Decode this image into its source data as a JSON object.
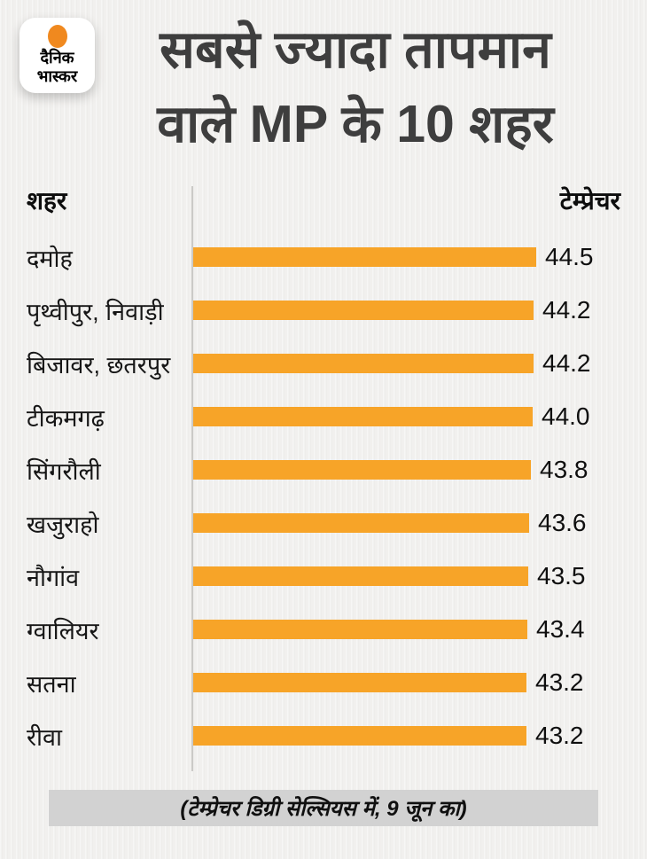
{
  "logo": {
    "name": "Dainik Bhaskar",
    "line1": "दैनिक",
    "line2": "भास्कर"
  },
  "title": {
    "line1": "सबसे ज्यादा तापमान",
    "line2": "वाले MP के 10 शहर"
  },
  "chart_data": {
    "type": "bar",
    "orientation": "horizontal",
    "title": "सबसे ज्यादा तापमान वाले MP के 10 शहर",
    "city_header": "शहर",
    "value_header": "टेम्प्रेचर",
    "categories": [
      "दमोह",
      "पृथ्वीपुर, निवाड़ी",
      "बिजावर, छतरपुर",
      "टीकमगढ़",
      "सिंगरौली",
      "खजुराहो",
      "नौगांव",
      "ग्वालियर",
      "सतना",
      "रीवा"
    ],
    "values": [
      44.5,
      44.2,
      44.2,
      44.0,
      43.8,
      43.6,
      43.5,
      43.4,
      43.2,
      43.2
    ],
    "value_labels": [
      "44.5",
      "44.2",
      "44.2",
      "44.0",
      "43.8",
      "43.6",
      "43.5",
      "43.4",
      "43.2",
      "43.2"
    ],
    "value_axis_range": [
      0,
      44.5
    ],
    "grid": "off",
    "legend": "none",
    "unit_note": "(टेम्प्रेचर डिग्री सेल्सियस में, 9 जून का)"
  },
  "colors": {
    "background": "#f1f0ee",
    "bar": "#f7a428",
    "logo_dot": "#f0891f",
    "title_text": "#3e3e3e",
    "text": "#141414",
    "footer_bg": "#d2d2d2",
    "axis_line": "#cbcac7"
  }
}
